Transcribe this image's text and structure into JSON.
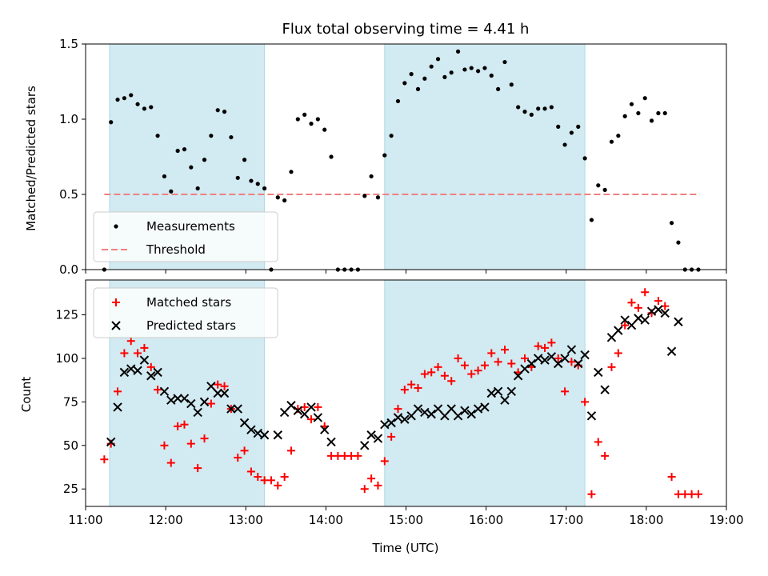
{
  "chart_data": [
    {
      "type": "scatter",
      "title": "Flux total observing time = 4.41 h",
      "xlabel": "",
      "ylabel": "Matched/Predicted stars",
      "xlim": [
        "11:00",
        "19:00"
      ],
      "ylim": [
        0,
        1.5
      ],
      "yticks": [
        {
          "value": 0,
          "label": "0.0"
        },
        {
          "value": 0.5,
          "label": "0.5"
        },
        {
          "value": 1.0,
          "label": "1.0"
        },
        {
          "value": 1.5,
          "label": "1.5"
        }
      ],
      "legend_position": "lower-left",
      "shaded_intervals": [
        [
          "11:18",
          "13:14"
        ],
        [
          "14:44",
          "17:14"
        ]
      ],
      "shaded_color": "#add8e6",
      "threshold": {
        "name": "Threshold",
        "value": 0.5,
        "x_range": [
          "11:14",
          "18:40"
        ],
        "color": "#f08080"
      },
      "series": [
        {
          "name": "Measurements",
          "marker": "dot",
          "color": "#000000",
          "x": [
            "11:14",
            "11:19",
            "11:24",
            "11:29",
            "11:34",
            "11:39",
            "11:44",
            "11:49",
            "11:54",
            "11:59",
            "12:04",
            "12:09",
            "12:14",
            "12:19",
            "12:24",
            "12:29",
            "12:34",
            "12:39",
            "12:44",
            "12:49",
            "12:54",
            "12:59",
            "13:04",
            "13:09",
            "13:14",
            "13:19",
            "13:24",
            "13:29",
            "13:34",
            "13:39",
            "13:44",
            "13:49",
            "13:54",
            "13:59",
            "14:04",
            "14:09",
            "14:14",
            "14:19",
            "14:24",
            "14:29",
            "14:34",
            "14:39",
            "14:44",
            "14:49",
            "14:54",
            "14:59",
            "15:04",
            "15:09",
            "15:14",
            "15:19",
            "15:24",
            "15:29",
            "15:34",
            "15:39",
            "15:44",
            "15:49",
            "15:54",
            "15:59",
            "16:04",
            "16:09",
            "16:14",
            "16:19",
            "16:24",
            "16:29",
            "16:34",
            "16:39",
            "16:44",
            "16:49",
            "16:54",
            "16:59",
            "17:04",
            "17:09",
            "17:14",
            "17:19",
            "17:24",
            "17:29",
            "17:34",
            "17:39",
            "17:44",
            "17:49",
            "17:54",
            "17:59",
            "18:04",
            "18:09",
            "18:14",
            "18:19",
            "18:24",
            "18:29",
            "18:34",
            "18:39"
          ],
          "y": [
            0.0,
            0.98,
            1.13,
            1.14,
            1.16,
            1.1,
            1.07,
            1.08,
            0.89,
            0.62,
            0.52,
            0.79,
            0.8,
            0.68,
            0.54,
            0.73,
            0.89,
            1.06,
            1.05,
            0.88,
            0.61,
            0.73,
            0.59,
            0.57,
            0.54,
            0.0,
            0.48,
            0.46,
            0.65,
            1.0,
            1.03,
            0.97,
            1.0,
            0.93,
            0.75,
            0.0,
            0.0,
            0.0,
            0.0,
            0.49,
            0.62,
            0.48,
            0.76,
            0.89,
            1.12,
            1.24,
            1.3,
            1.2,
            1.27,
            1.35,
            1.4,
            1.28,
            1.31,
            1.45,
            1.33,
            1.34,
            1.32,
            1.34,
            1.29,
            1.2,
            1.38,
            1.23,
            1.08,
            1.05,
            1.03,
            1.07,
            1.07,
            1.08,
            0.95,
            0.83,
            0.91,
            0.95,
            0.74,
            0.33,
            0.56,
            0.53,
            0.85,
            0.89,
            1.02,
            1.1,
            1.04,
            1.14,
            0.99,
            1.04,
            1.04,
            0.31,
            0.18,
            0.0,
            0.0,
            0.0
          ]
        },
        {
          "name": "Threshold",
          "marker": "dashed-line",
          "color": "#f08080"
        }
      ]
    },
    {
      "type": "scatter",
      "title": "",
      "xlabel": "Time (UTC)",
      "ylabel": "Count",
      "xlim": [
        "11:00",
        "19:00"
      ],
      "ylim": [
        15,
        145
      ],
      "yticks": [
        {
          "value": 25,
          "label": "25"
        },
        {
          "value": 50,
          "label": "50"
        },
        {
          "value": 75,
          "label": "75"
        },
        {
          "value": 100,
          "label": "100"
        },
        {
          "value": 125,
          "label": "125"
        }
      ],
      "xticks": [
        "11:00",
        "12:00",
        "13:00",
        "14:00",
        "15:00",
        "16:00",
        "17:00",
        "18:00",
        "19:00"
      ],
      "legend_position": "upper-left",
      "shaded_intervals": [
        [
          "11:18",
          "13:14"
        ],
        [
          "14:44",
          "17:14"
        ]
      ],
      "shaded_color": "#add8e6",
      "series": [
        {
          "name": "Matched stars",
          "marker": "plus",
          "color": "#ff0000",
          "x": [
            "11:14",
            "11:19",
            "11:24",
            "11:29",
            "11:34",
            "11:39",
            "11:44",
            "11:49",
            "11:54",
            "11:59",
            "12:04",
            "12:09",
            "12:14",
            "12:19",
            "12:24",
            "12:29",
            "12:34",
            "12:39",
            "12:44",
            "12:49",
            "12:54",
            "12:59",
            "13:04",
            "13:09",
            "13:14",
            "13:19",
            "13:24",
            "13:29",
            "13:34",
            "13:39",
            "13:44",
            "13:49",
            "13:54",
            "13:59",
            "14:04",
            "14:09",
            "14:14",
            "14:19",
            "14:24",
            "14:29",
            "14:34",
            "14:39",
            "14:44",
            "14:49",
            "14:54",
            "14:59",
            "15:04",
            "15:09",
            "15:14",
            "15:19",
            "15:24",
            "15:29",
            "15:34",
            "15:39",
            "15:44",
            "15:49",
            "15:54",
            "15:59",
            "16:04",
            "16:09",
            "16:14",
            "16:19",
            "16:24",
            "16:29",
            "16:34",
            "16:39",
            "16:44",
            "16:49",
            "16:54",
            "16:59",
            "17:04",
            "17:09",
            "17:14",
            "17:19",
            "17:24",
            "17:29",
            "17:34",
            "17:39",
            "17:44",
            "17:49",
            "17:54",
            "17:59",
            "18:04",
            "18:09",
            "18:14",
            "18:19",
            "18:24",
            "18:29",
            "18:34",
            "18:39"
          ],
          "y": [
            42,
            51,
            81,
            103,
            110,
            103,
            106,
            95,
            82,
            50,
            40,
            61,
            62,
            51,
            37,
            54,
            74,
            85,
            84,
            71,
            43,
            47,
            35,
            32,
            30,
            30,
            27,
            32,
            47,
            71,
            72,
            65,
            72,
            61,
            44,
            44,
            44,
            44,
            44,
            25,
            31,
            27,
            41,
            55,
            71,
            82,
            85,
            83,
            91,
            92,
            95,
            90,
            87,
            100,
            96,
            91,
            93,
            96,
            103,
            98,
            105,
            97,
            92,
            100,
            95,
            107,
            106,
            109,
            100,
            81,
            98,
            96,
            75,
            22,
            52,
            44,
            95,
            103,
            119,
            132,
            129,
            138,
            126,
            133,
            130,
            32,
            22,
            22,
            22,
            22
          ]
        },
        {
          "name": "Predicted stars",
          "marker": "x",
          "color": "#000000",
          "x": [
            "11:19",
            "11:24",
            "11:29",
            "11:34",
            "11:39",
            "11:44",
            "11:49",
            "11:54",
            "11:59",
            "12:04",
            "12:09",
            "12:14",
            "12:19",
            "12:24",
            "12:29",
            "12:34",
            "12:39",
            "12:44",
            "12:49",
            "12:54",
            "12:59",
            "13:04",
            "13:09",
            "13:14",
            "13:24",
            "13:29",
            "13:34",
            "13:39",
            "13:44",
            "13:49",
            "13:54",
            "13:59",
            "14:04",
            "14:29",
            "14:34",
            "14:39",
            "14:44",
            "14:49",
            "14:54",
            "14:59",
            "15:04",
            "15:09",
            "15:14",
            "15:19",
            "15:24",
            "15:29",
            "15:34",
            "15:39",
            "15:44",
            "15:49",
            "15:54",
            "15:59",
            "16:04",
            "16:09",
            "16:14",
            "16:19",
            "16:24",
            "16:29",
            "16:34",
            "16:39",
            "16:44",
            "16:49",
            "16:54",
            "16:59",
            "17:04",
            "17:09",
            "17:14",
            "17:19",
            "17:24",
            "17:29",
            "17:34",
            "17:39",
            "17:44",
            "17:49",
            "17:54",
            "17:59",
            "18:04",
            "18:09",
            "18:14",
            "18:19",
            "18:24"
          ],
          "y": [
            52,
            72,
            92,
            94,
            93,
            99,
            90,
            92,
            81,
            76,
            77,
            77,
            74,
            69,
            75,
            84,
            80,
            80,
            71,
            71,
            63,
            59,
            57,
            56,
            56,
            69,
            73,
            70,
            68,
            72,
            66,
            59,
            52,
            50,
            56,
            54,
            62,
            63,
            66,
            65,
            67,
            71,
            69,
            68,
            71,
            67,
            71,
            67,
            70,
            68,
            71,
            72,
            80,
            81,
            76,
            81,
            90,
            94,
            97,
            100,
            99,
            101,
            97,
            100,
            105,
            97,
            102,
            67,
            92,
            82,
            112,
            116,
            122,
            119,
            123,
            122,
            127,
            128,
            126,
            104,
            121
          ]
        }
      ]
    }
  ]
}
